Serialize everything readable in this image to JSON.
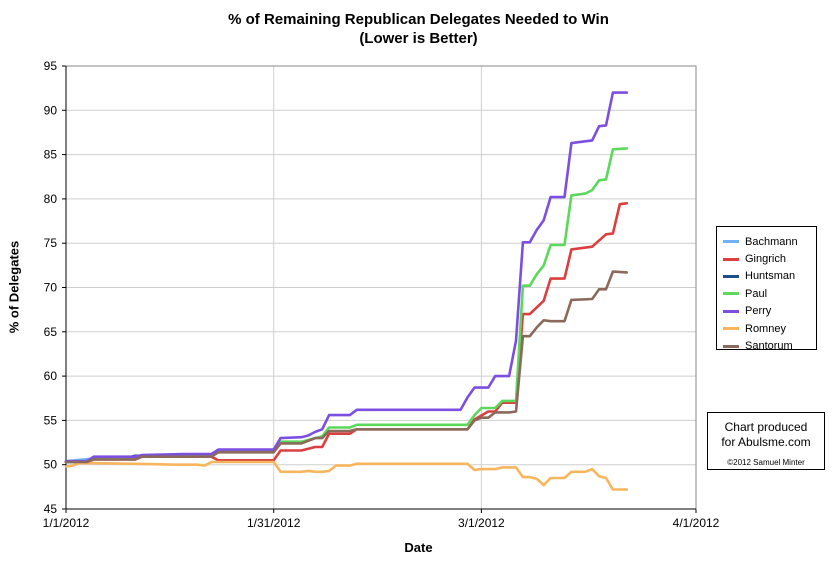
{
  "chart_data": {
    "type": "line",
    "title": "% of Remaining Republican Delegates Needed to Win",
    "subtitle": "(Lower is Better)",
    "xlabel": "Date",
    "ylabel": "% of Delegates",
    "ylim": [
      45,
      95
    ],
    "yticks": [
      "45",
      "50",
      "55",
      "60",
      "65",
      "70",
      "75",
      "80",
      "85",
      "90",
      "95"
    ],
    "xlim": [
      "1/1/2012",
      "4/1/2012"
    ],
    "xticks": [
      "1/1/2012",
      "1/31/2012",
      "3/1/2012",
      "4/1/2012"
    ],
    "grid": true,
    "legend": "right",
    "series": [
      {
        "name": "Bachmann",
        "color": "#6fb2f5",
        "points": [
          [
            "1/1/2012",
            50.4
          ],
          [
            "1/5/2012",
            50.7
          ]
        ]
      },
      {
        "name": "Gingrich",
        "color": "#d9403f",
        "points": [
          [
            "1/1/2012",
            50.3
          ],
          [
            "1/4/2012",
            50.3
          ],
          [
            "1/5/2012",
            50.6
          ],
          [
            "1/11/2012",
            50.6
          ],
          [
            "1/12/2012",
            50.9
          ],
          [
            "1/22/2012",
            50.9
          ],
          [
            "1/23/2012",
            50.5
          ],
          [
            "1/31/2012",
            50.5
          ],
          [
            "2/1/2012",
            51.6
          ],
          [
            "2/4/2012",
            51.6
          ],
          [
            "2/6/2012",
            52.0
          ],
          [
            "2/7/2012",
            52.0
          ],
          [
            "2/8/2012",
            53.5
          ],
          [
            "2/11/2012",
            53.5
          ],
          [
            "2/12/2012",
            54.0
          ],
          [
            "2/28/2012",
            54.0
          ],
          [
            "2/29/2012",
            55.1
          ],
          [
            "3/2/2012",
            56.0
          ],
          [
            "3/3/2012",
            56.0
          ],
          [
            "3/4/2012",
            57.0
          ],
          [
            "3/6/2012",
            57.0
          ],
          [
            "3/7/2012",
            67.0
          ],
          [
            "3/8/2012",
            67.0
          ],
          [
            "3/10/2012",
            68.5
          ],
          [
            "3/11/2012",
            71.0
          ],
          [
            "3/13/2012",
            71.0
          ],
          [
            "3/14/2012",
            74.3
          ],
          [
            "3/17/2012",
            74.6
          ],
          [
            "3/19/2012",
            76.0
          ],
          [
            "3/20/2012",
            76.1
          ],
          [
            "3/21/2012",
            79.4
          ],
          [
            "3/22/2012",
            79.5
          ]
        ]
      },
      {
        "name": "Huntsman",
        "color": "#1f4e8c",
        "points": [
          [
            "1/1/2012",
            50.3
          ],
          [
            "1/4/2012",
            50.3
          ],
          [
            "1/5/2012",
            50.8
          ],
          [
            "1/10/2012",
            50.8
          ],
          [
            "1/11/2012",
            51.0
          ],
          [
            "1/16/2012",
            51.0
          ]
        ]
      },
      {
        "name": "Paul",
        "color": "#5cd85c",
        "points": [
          [
            "1/1/2012",
            50.3
          ],
          [
            "1/4/2012",
            50.3
          ],
          [
            "1/5/2012",
            50.7
          ],
          [
            "1/11/2012",
            50.7
          ],
          [
            "1/12/2012",
            51.0
          ],
          [
            "1/22/2012",
            51.0
          ],
          [
            "1/23/2012",
            51.5
          ],
          [
            "1/31/2012",
            51.5
          ],
          [
            "2/1/2012",
            52.6
          ],
          [
            "2/4/2012",
            52.6
          ],
          [
            "2/6/2012",
            53.0
          ],
          [
            "2/7/2012",
            53.2
          ],
          [
            "2/8/2012",
            54.2
          ],
          [
            "2/11/2012",
            54.2
          ],
          [
            "2/12/2012",
            54.5
          ],
          [
            "2/28/2012",
            54.5
          ],
          [
            "2/29/2012",
            55.6
          ],
          [
            "3/1/2012",
            56.4
          ],
          [
            "3/3/2012",
            56.4
          ],
          [
            "3/4/2012",
            57.2
          ],
          [
            "3/6/2012",
            57.2
          ],
          [
            "3/7/2012",
            70.2
          ],
          [
            "3/8/2012",
            70.2
          ],
          [
            "3/9/2012",
            71.5
          ],
          [
            "3/10/2012",
            72.5
          ],
          [
            "3/11/2012",
            74.8
          ],
          [
            "3/13/2012",
            74.8
          ],
          [
            "3/14/2012",
            80.4
          ],
          [
            "3/16/2012",
            80.6
          ],
          [
            "3/17/2012",
            81.0
          ],
          [
            "3/18/2012",
            82.1
          ],
          [
            "3/19/2012",
            82.2
          ],
          [
            "3/20/2012",
            85.6
          ],
          [
            "3/22/2012",
            85.7
          ]
        ]
      },
      {
        "name": "Perry",
        "color": "#7d4fe0",
        "points": [
          [
            "1/1/2012",
            50.4
          ],
          [
            "1/4/2012",
            50.4
          ],
          [
            "1/5/2012",
            50.9
          ],
          [
            "1/11/2012",
            50.9
          ],
          [
            "1/12/2012",
            51.1
          ],
          [
            "1/18/2012",
            51.2
          ],
          [
            "1/22/2012",
            51.2
          ],
          [
            "1/23/2012",
            51.7
          ],
          [
            "1/31/2012",
            51.7
          ],
          [
            "2/1/2012",
            53.0
          ],
          [
            "2/4/2012",
            53.1
          ],
          [
            "2/5/2012",
            53.3
          ],
          [
            "2/6/2012",
            53.7
          ],
          [
            "2/7/2012",
            54.0
          ],
          [
            "2/8/2012",
            55.6
          ],
          [
            "2/11/2012",
            55.6
          ],
          [
            "2/12/2012",
            56.2
          ],
          [
            "2/27/2012",
            56.2
          ],
          [
            "2/28/2012",
            57.6
          ],
          [
            "2/29/2012",
            58.7
          ],
          [
            "3/2/2012",
            58.7
          ],
          [
            "3/3/2012",
            60.0
          ],
          [
            "3/5/2012",
            60.0
          ],
          [
            "3/6/2012",
            64.0
          ],
          [
            "3/7/2012",
            75.1
          ],
          [
            "3/8/2012",
            75.1
          ],
          [
            "3/9/2012",
            76.5
          ],
          [
            "3/10/2012",
            77.6
          ],
          [
            "3/11/2012",
            80.2
          ],
          [
            "3/13/2012",
            80.2
          ],
          [
            "3/14/2012",
            86.3
          ],
          [
            "3/17/2012",
            86.6
          ],
          [
            "3/18/2012",
            88.2
          ],
          [
            "3/19/2012",
            88.3
          ],
          [
            "3/20/2012",
            92.0
          ],
          [
            "3/22/2012",
            92.0
          ]
        ]
      },
      {
        "name": "Romney",
        "color": "#f7b55e",
        "points": [
          [
            "1/1/2012",
            49.8
          ],
          [
            "1/2/2012",
            49.9
          ],
          [
            "1/3/2012",
            50.2
          ],
          [
            "1/11/2012",
            50.1
          ],
          [
            "1/17/2012",
            50.0
          ],
          [
            "1/20/2012",
            50.0
          ],
          [
            "1/21/2012",
            49.9
          ],
          [
            "1/22/2012",
            50.3
          ],
          [
            "1/31/2012",
            50.3
          ],
          [
            "2/1/2012",
            49.2
          ],
          [
            "2/4/2012",
            49.2
          ],
          [
            "2/5/2012",
            49.3
          ],
          [
            "2/6/2012",
            49.2
          ],
          [
            "2/7/2012",
            49.2
          ],
          [
            "2/8/2012",
            49.3
          ],
          [
            "2/9/2012",
            49.9
          ],
          [
            "2/11/2012",
            49.9
          ],
          [
            "2/12/2012",
            50.1
          ],
          [
            "2/28/2012",
            50.1
          ],
          [
            "2/29/2012",
            49.4
          ],
          [
            "3/1/2012",
            49.5
          ],
          [
            "3/3/2012",
            49.5
          ],
          [
            "3/4/2012",
            49.7
          ],
          [
            "3/6/2012",
            49.7
          ],
          [
            "3/7/2012",
            48.6
          ],
          [
            "3/8/2012",
            48.6
          ],
          [
            "3/9/2012",
            48.4
          ],
          [
            "3/10/2012",
            47.7
          ],
          [
            "3/11/2012",
            48.5
          ],
          [
            "3/13/2012",
            48.5
          ],
          [
            "3/14/2012",
            49.2
          ],
          [
            "3/16/2012",
            49.2
          ],
          [
            "3/17/2012",
            49.5
          ],
          [
            "3/18/2012",
            48.7
          ],
          [
            "3/19/2012",
            48.5
          ],
          [
            "3/20/2012",
            47.2
          ],
          [
            "3/22/2012",
            47.2
          ]
        ]
      },
      {
        "name": "Santorum",
        "color": "#8b6a5b",
        "points": [
          [
            "1/1/2012",
            50.3
          ],
          [
            "1/4/2012",
            50.3
          ],
          [
            "1/5/2012",
            50.6
          ],
          [
            "1/11/2012",
            50.6
          ],
          [
            "1/12/2012",
            50.9
          ],
          [
            "1/22/2012",
            50.9
          ],
          [
            "1/23/2012",
            51.4
          ],
          [
            "1/31/2012",
            51.4
          ],
          [
            "2/1/2012",
            52.4
          ],
          [
            "2/4/2012",
            52.4
          ],
          [
            "2/6/2012",
            53.0
          ],
          [
            "2/7/2012",
            53.0
          ],
          [
            "2/8/2012",
            53.8
          ],
          [
            "2/11/2012",
            53.8
          ],
          [
            "2/12/2012",
            54.0
          ],
          [
            "2/28/2012",
            54.0
          ],
          [
            "2/29/2012",
            55.0
          ],
          [
            "3/1/2012",
            55.3
          ],
          [
            "3/2/2012",
            55.3
          ],
          [
            "3/3/2012",
            55.9
          ],
          [
            "3/5/2012",
            55.9
          ],
          [
            "3/6/2012",
            56.0
          ],
          [
            "3/7/2012",
            64.5
          ],
          [
            "3/8/2012",
            64.5
          ],
          [
            "3/9/2012",
            65.5
          ],
          [
            "3/10/2012",
            66.3
          ],
          [
            "3/11/2012",
            66.2
          ],
          [
            "3/13/2012",
            66.2
          ],
          [
            "3/14/2012",
            68.6
          ],
          [
            "3/17/2012",
            68.7
          ],
          [
            "3/18/2012",
            69.8
          ],
          [
            "3/19/2012",
            69.8
          ],
          [
            "3/20/2012",
            71.8
          ],
          [
            "3/22/2012",
            71.7
          ]
        ]
      }
    ]
  },
  "legend": [
    "Bachmann",
    "Gingrich",
    "Huntsman",
    "Paul",
    "Perry",
    "Romney",
    "Santorum"
  ],
  "credit": {
    "line1": "Chart produced",
    "line2": "for Abulsme.com",
    "line3": "©2012 Samuel Minter"
  },
  "colors": {
    "grid": "#cfcfcf",
    "background": "#ffffff"
  }
}
